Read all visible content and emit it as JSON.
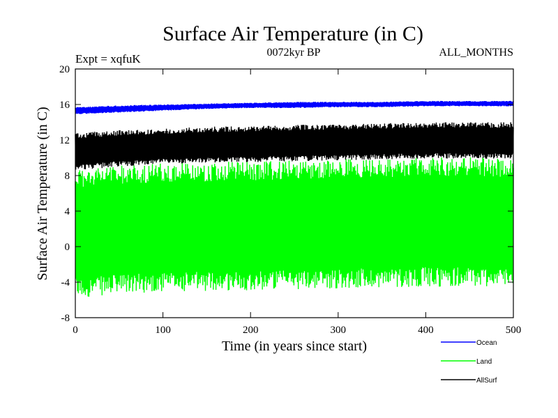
{
  "chart_data": {
    "type": "line",
    "title": "Surface Air Temperature (in C)",
    "subtitle": "0072kyr BP",
    "left_label": "Expt = xqfuK",
    "right_label": "ALL_MONTHS",
    "xlabel": "Time (in years since start)",
    "ylabel": "Surface Air Temperature (in C)",
    "xlim": [
      0,
      500
    ],
    "ylim": [
      -8,
      20
    ],
    "xticks": [
      0,
      100,
      200,
      300,
      400,
      500
    ],
    "yticks": [
      -8,
      -4,
      0,
      4,
      8,
      12,
      16,
      20
    ],
    "xtick_labels": [
      "0",
      "100",
      "200",
      "300",
      "400",
      "500"
    ],
    "ytick_labels": [
      "-8",
      "-4",
      "0",
      "4",
      "8",
      "12",
      "16",
      "20"
    ],
    "grid": false,
    "legend_position": "bottom-right, below plot",
    "series": [
      {
        "name": "Ocean",
        "color": "#0000ff",
        "description_band": true,
        "x": [
          0,
          50,
          100,
          150,
          200,
          250,
          300,
          350,
          400,
          450,
          500
        ],
        "min": [
          14.9,
          15.1,
          15.3,
          15.5,
          15.6,
          15.6,
          15.7,
          15.7,
          15.8,
          15.8,
          15.8
        ],
        "max": [
          15.7,
          15.9,
          16.0,
          16.1,
          16.2,
          16.3,
          16.3,
          16.3,
          16.4,
          16.4,
          16.4
        ]
      },
      {
        "name": "Land",
        "color": "#00ff00",
        "x": [
          0,
          50,
          100,
          150,
          200,
          250,
          300,
          350,
          400,
          450,
          500
        ],
        "min": [
          -5.8,
          -5.3,
          -5.1,
          -5.0,
          -4.9,
          -4.8,
          -4.7,
          -4.6,
          -4.5,
          -4.5,
          -4.5
        ],
        "max": [
          8.8,
          9.2,
          9.4,
          9.5,
          9.6,
          9.7,
          9.9,
          10.0,
          10.1,
          10.1,
          10.0
        ]
      },
      {
        "name": "AllSurf",
        "color": "#000000",
        "x": [
          0,
          50,
          100,
          150,
          200,
          250,
          300,
          350,
          400,
          450,
          500
        ],
        "min": [
          8.6,
          9.0,
          9.3,
          9.4,
          9.5,
          9.6,
          9.7,
          9.8,
          9.9,
          9.9,
          9.9
        ],
        "max": [
          12.8,
          13.1,
          13.3,
          13.5,
          13.6,
          13.7,
          13.8,
          13.9,
          14.0,
          14.0,
          14.0
        ]
      }
    ]
  }
}
